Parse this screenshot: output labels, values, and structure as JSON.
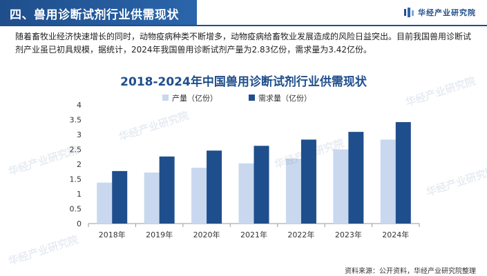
{
  "header": {
    "title": "四、兽用诊断试剂行业供需现状",
    "brand": "华经产业研究院"
  },
  "intro": "随着畜牧业经济快速增长的同时，动物疫病种类不断增多，动物疫病给畜牧业发展造成的风险日益突出。目前我国兽用诊断试剂产业虽已初具规模，据统计，2024年我国兽用诊断试剂产量为2.83亿份，需求量为3.42亿份。",
  "watermark": "华经产业研究院",
  "source": "资料来源：公开资料，华经产业研究院整理",
  "colors": {
    "supply": "#c9d8ef",
    "demand": "#1f4e8c",
    "accent": "#1f4e8c"
  },
  "chart_data": {
    "type": "bar",
    "title": "2018-2024年中国兽用诊断试剂行业供需现状",
    "categories": [
      "2018年",
      "2019年",
      "2020年",
      "2021年",
      "2022年",
      "2023年",
      "2024年"
    ],
    "series": [
      {
        "name": "产量（亿份）",
        "values": [
          1.38,
          1.72,
          1.88,
          2.03,
          2.19,
          2.5,
          2.83
        ]
      },
      {
        "name": "需求量（亿份）",
        "values": [
          1.77,
          2.26,
          2.46,
          2.62,
          2.83,
          3.09,
          3.42
        ]
      }
    ],
    "yticks": [
      "0",
      "0.5",
      "1",
      "1.5",
      "2",
      "2.5",
      "3",
      "3.5",
      "4"
    ],
    "ylim": [
      0,
      4
    ],
    "legend_position": "top-left",
    "grid": false
  }
}
